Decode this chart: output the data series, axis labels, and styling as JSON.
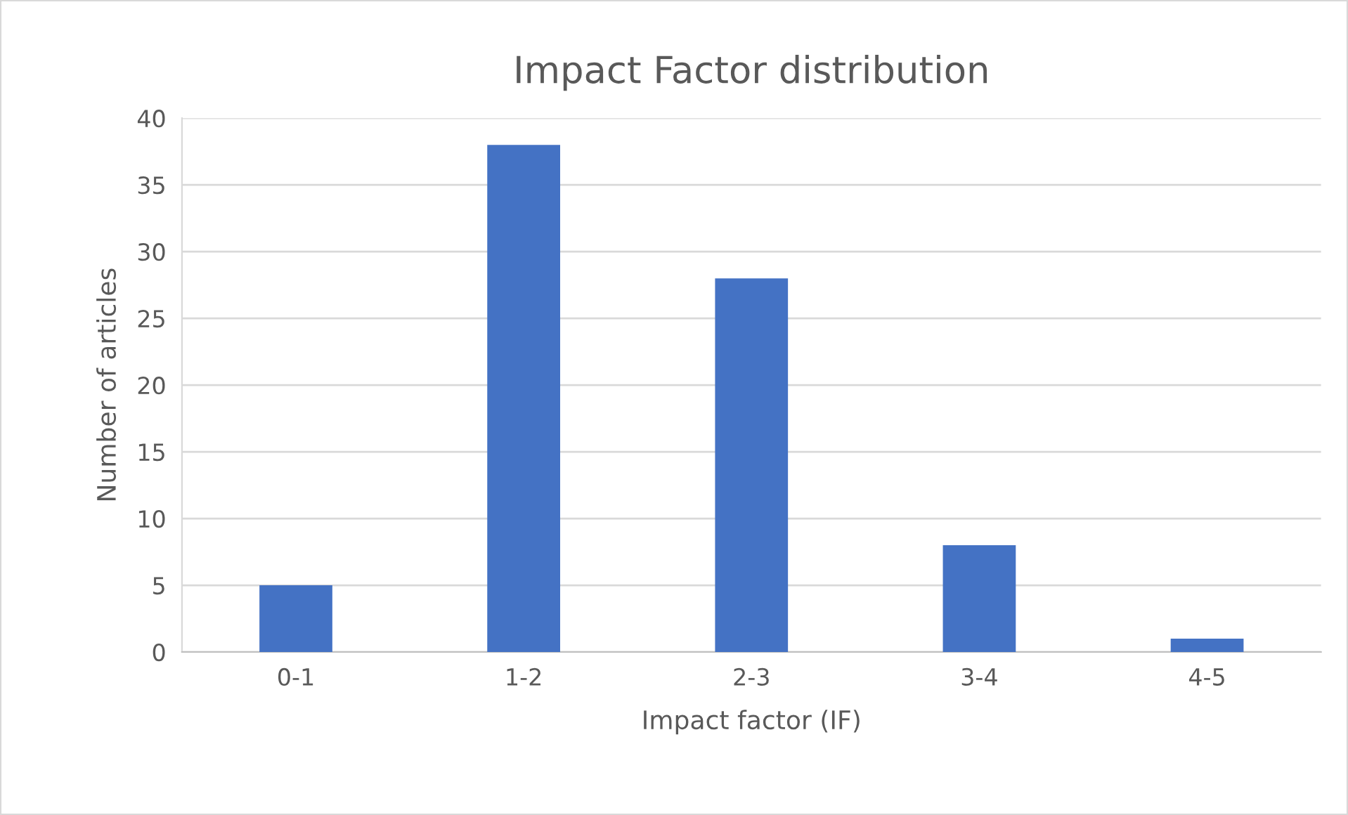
{
  "chart_data": {
    "type": "bar",
    "title": "Impact Factor distribution",
    "xlabel": "Impact factor (IF)",
    "ylabel": "Number of articles",
    "categories": [
      "0-1",
      "1-2",
      "2-3",
      "3-4",
      "4-5"
    ],
    "values": [
      5,
      38,
      28,
      8,
      1
    ],
    "color": "#4472c4",
    "ylim": [
      0,
      40
    ],
    "yticks": [
      0,
      5,
      10,
      15,
      20,
      25,
      30,
      35,
      40
    ],
    "grid": "y"
  }
}
